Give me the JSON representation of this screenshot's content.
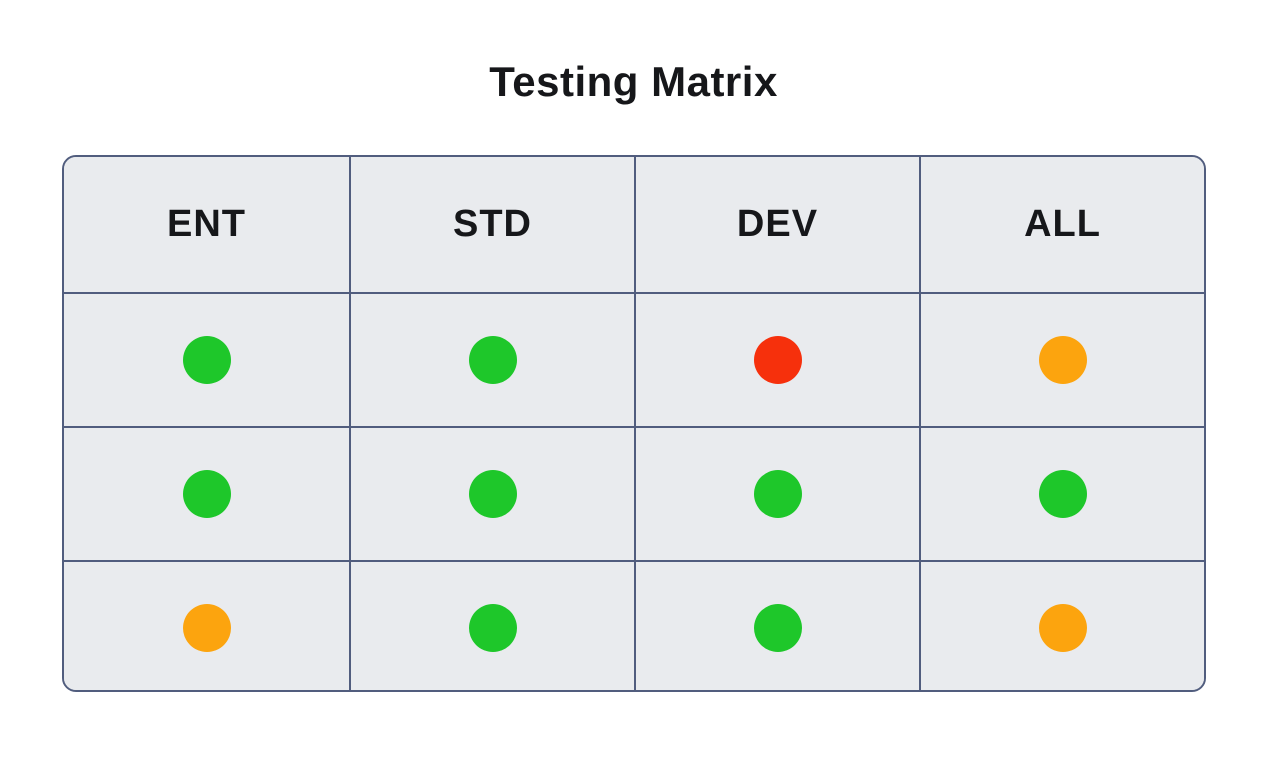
{
  "title": "Testing Matrix",
  "chart_data": {
    "type": "table",
    "title": "Testing Matrix",
    "columns": [
      "ENT",
      "STD",
      "DEV",
      "ALL"
    ],
    "rows": [
      [
        "green",
        "green",
        "red",
        "orange"
      ],
      [
        "green",
        "green",
        "green",
        "green"
      ],
      [
        "orange",
        "green",
        "green",
        "orange"
      ]
    ]
  },
  "colors": {
    "green": "#1ec72a",
    "red": "#f6300c",
    "orange": "#fca40e",
    "border": "#515d7e",
    "cell_bg": "#e9ebee",
    "text": "#16171a"
  }
}
